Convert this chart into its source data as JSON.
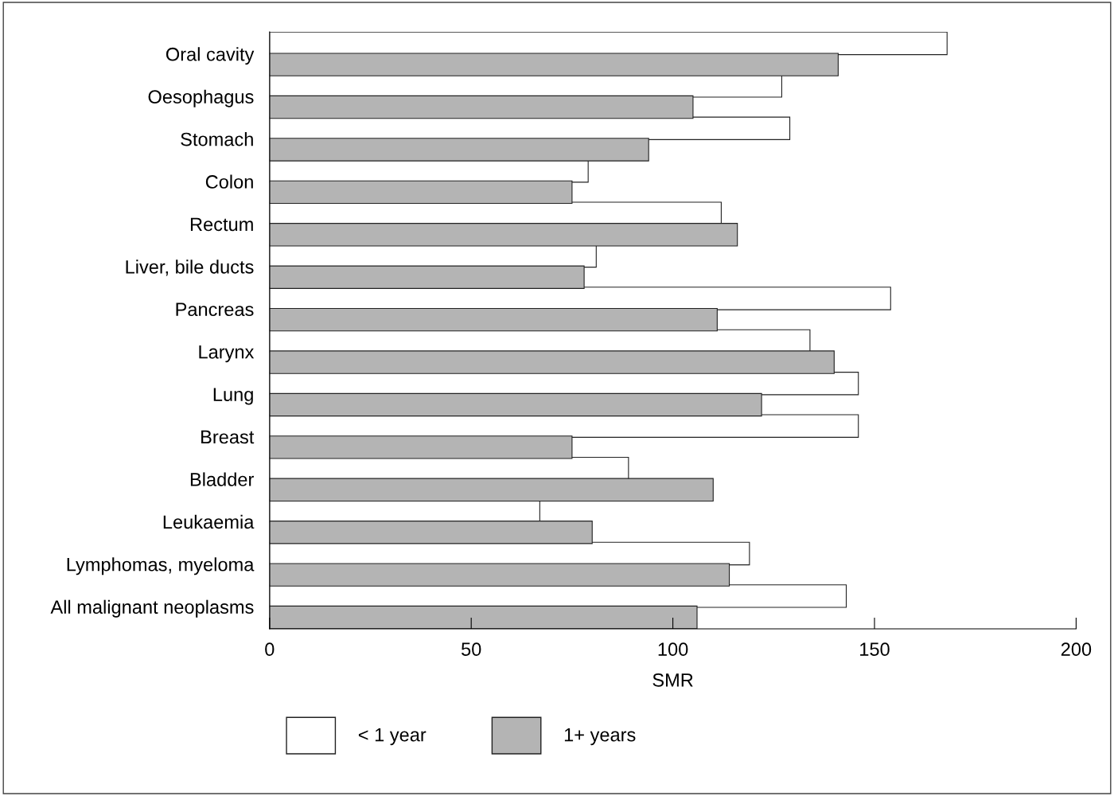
{
  "chart_data": {
    "type": "bar",
    "orientation": "horizontal",
    "xlabel": "SMR",
    "categories": [
      "Oral cavity",
      "Oesophagus",
      "Stomach",
      "Colon",
      "Rectum",
      "Liver, bile ducts",
      "Pancreas",
      "Larynx",
      "Lung",
      "Breast",
      "Bladder",
      "Leukaemia",
      "Lymphomas, myeloma",
      "All malignant neoplasms"
    ],
    "series": [
      {
        "name": "< 1 year",
        "color": "#ffffff",
        "values": [
          168,
          127,
          129,
          79,
          112,
          81,
          154,
          134,
          146,
          146,
          89,
          67,
          119,
          143
        ]
      },
      {
        "name": "1+ years",
        "color": "#b4b4b4",
        "values": [
          141,
          105,
          94,
          75,
          116,
          78,
          111,
          140,
          122,
          75,
          110,
          80,
          114,
          106
        ]
      }
    ],
    "xlim": [
      0,
      200
    ],
    "xticks": [
      0,
      50,
      100,
      150,
      200
    ],
    "grid": false,
    "legend": "bottom"
  }
}
